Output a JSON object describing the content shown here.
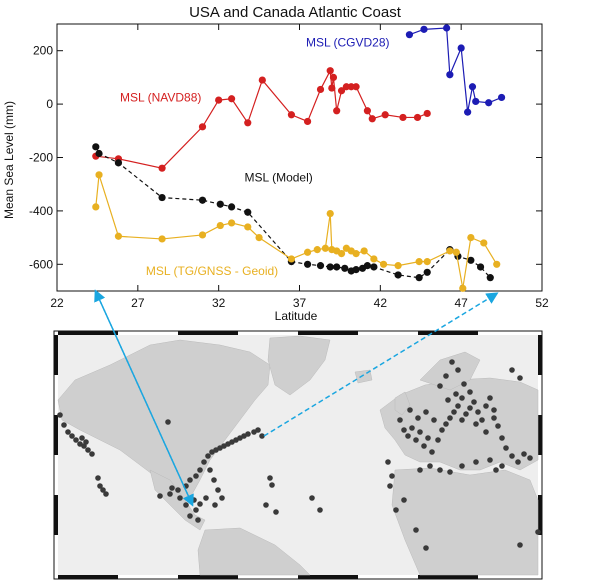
{
  "chart_data": {
    "type": "line",
    "title": "USA and Canada Atlantic Coast",
    "xlabel": "Latitude",
    "ylabel": "Mean Sea Level (mm)",
    "xlim": [
      22,
      52
    ],
    "ylim": [
      -700,
      300
    ],
    "x_ticks": [
      22,
      27,
      32,
      37,
      42,
      47,
      52
    ],
    "y_ticks": [
      -600,
      -400,
      -200,
      0,
      200
    ],
    "grid": false,
    "series": [
      {
        "name": "MSL (NAVD88)",
        "color": "#d42020",
        "x": [
          24.4,
          25.8,
          28.5,
          31.0,
          32.0,
          32.8,
          33.8,
          34.7,
          36.5,
          37.5,
          38.3,
          38.9,
          39.0,
          39.1,
          39.3,
          39.6,
          39.9,
          40.2,
          40.5,
          41.2,
          41.5,
          42.3,
          43.4,
          44.3,
          44.9
        ],
        "y": [
          -195,
          -205,
          -240,
          -85,
          15,
          20,
          -70,
          90,
          -40,
          -65,
          55,
          125,
          60,
          100,
          -25,
          50,
          65,
          65,
          65,
          -25,
          -55,
          -40,
          -50,
          -50,
          -35
        ]
      },
      {
        "name": "MSL (CGVD28)",
        "color": "#1c1cb4",
        "x": [
          43.8,
          44.7,
          46.1,
          46.3,
          47.0,
          47.4,
          47.7,
          47.9,
          48.7,
          49.5
        ],
        "y": [
          260,
          280,
          285,
          110,
          210,
          -30,
          65,
          10,
          5,
          25
        ]
      },
      {
        "name": "MSL (Model)",
        "color": "#111111",
        "x": [
          24.4,
          24.6,
          25.8,
          28.5,
          31.0,
          32.1,
          32.8,
          33.8,
          36.5,
          37.5,
          38.3,
          38.9,
          39.3,
          39.8,
          40.2,
          40.5,
          40.9,
          41.2,
          41.6,
          43.1,
          44.4,
          44.9,
          46.3,
          46.8,
          47.6,
          48.2,
          48.8
        ],
        "y": [
          -160,
          -185,
          -220,
          -350,
          -360,
          -375,
          -385,
          -405,
          -590,
          -600,
          -605,
          -610,
          -610,
          -615,
          -625,
          -620,
          -615,
          -605,
          -610,
          -640,
          -650,
          -630,
          -545,
          -570,
          -585,
          -610,
          -650
        ]
      },
      {
        "name": "MSL (TG/GNSS - Geoid)",
        "color": "#e8b021",
        "x": [
          24.4,
          24.6,
          25.8,
          28.5,
          31.0,
          32.1,
          32.8,
          33.8,
          34.5,
          36.5,
          37.5,
          38.1,
          38.6,
          38.9,
          39.0,
          39.3,
          39.6,
          39.9,
          40.2,
          40.5,
          41.0,
          41.6,
          42.2,
          43.1,
          44.4,
          44.9,
          46.3,
          46.7,
          47.1,
          47.6,
          48.4,
          49.2
        ],
        "y": [
          -385,
          -265,
          -495,
          -505,
          -490,
          -455,
          -445,
          -460,
          -500,
          -580,
          -555,
          -545,
          -540,
          -410,
          -545,
          -550,
          -560,
          -540,
          -550,
          -560,
          -550,
          -580,
          -600,
          -605,
          -590,
          -590,
          -550,
          -555,
          -690,
          -500,
          -520,
          -600
        ]
      }
    ],
    "annotations": [
      {
        "text": "MSL (NAVD88)",
        "color": "#d42020",
        "x": 25.9,
        "y": 10
      },
      {
        "text": "MSL (CGVD28)",
        "color": "#1c1cb4",
        "x": 37.4,
        "y": 215
      },
      {
        "text": "MSL (Model)",
        "color": "#111111",
        "x": 33.6,
        "y": -290
      },
      {
        "text": "MSL (TG/GNSS - Geoid)",
        "color": "#e8b021",
        "x": 27.5,
        "y": -640
      }
    ]
  },
  "map": {
    "land_color": "#cfcfcf",
    "ocean_color": "#eeeeee",
    "arrow_color": "#1aa6e0"
  }
}
